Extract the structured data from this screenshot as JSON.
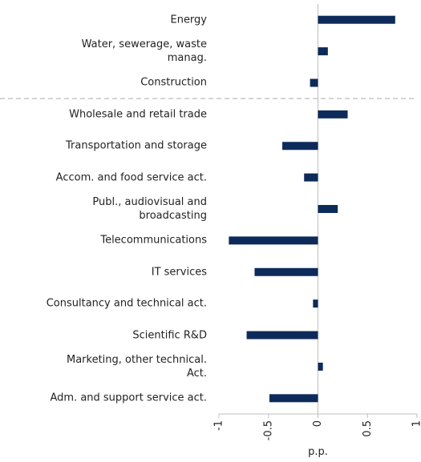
{
  "chart_data": {
    "type": "bar",
    "orientation": "horizontal",
    "categories": [
      "Energy",
      "Water, sewerage, waste\nmanag.",
      "Construction",
      "Wholesale and retail trade",
      "Transportation and storage",
      "Accom. and food service act.",
      "Publ., audiovisual and\nbroadcasting",
      "Telecommunications",
      "IT services",
      "Consultancy and technical act.",
      "Scientific R&D",
      "Marketing, other technical.\nAct.",
      "Adm. and support service act."
    ],
    "values": [
      0.78,
      0.1,
      -0.08,
      0.3,
      -0.36,
      -0.14,
      0.2,
      -0.9,
      -0.64,
      -0.05,
      -0.72,
      0.05,
      -0.49
    ],
    "color": "#0d2b5a",
    "xlim": [
      -1,
      1
    ],
    "xticks": [
      -1,
      -0.5,
      0,
      0.5,
      1
    ],
    "xlabel": "p.p.",
    "grid": false
  }
}
